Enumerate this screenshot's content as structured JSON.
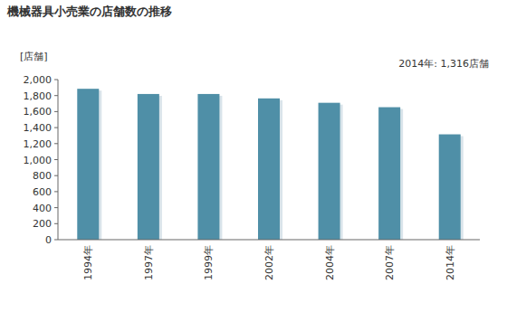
{
  "chart_data": {
    "type": "bar",
    "title": "機械器具小売業の店舗数の推移",
    "y_axis_label": "[店舗]",
    "annotation": "2014年: 1,316店舗",
    "categories": [
      "1994年",
      "1997年",
      "1999年",
      "2002年",
      "2004年",
      "2007年",
      "2014年"
    ],
    "values": [
      1885,
      1820,
      1820,
      1765,
      1710,
      1655,
      1316
    ],
    "color": "#4f8fa7",
    "ylim": [
      0,
      2000
    ],
    "yticks": [
      0,
      200,
      400,
      600,
      800,
      {
        "value": 1000,
        "label": "1,000"
      },
      {
        "value": 1200,
        "label": "1,200"
      },
      {
        "value": 1400,
        "label": "1,400"
      },
      {
        "value": 1600,
        "label": "1,600"
      },
      {
        "value": 1800,
        "label": "1,800"
      },
      {
        "value": 2000,
        "label": "2,000"
      }
    ],
    "grid": false
  }
}
